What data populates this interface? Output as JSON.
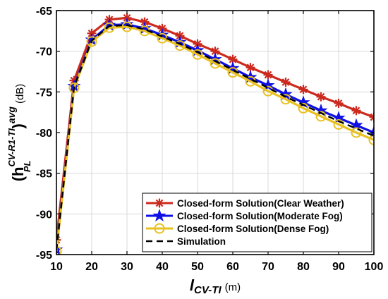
{
  "chart_data": {
    "type": "line",
    "x": [
      10,
      15,
      20,
      25,
      30,
      35,
      40,
      45,
      50,
      55,
      60,
      65,
      70,
      75,
      80,
      85,
      90,
      95,
      100
    ],
    "xlim": [
      10,
      100
    ],
    "ylim": [
      -95,
      -65
    ],
    "xticks": [
      "10",
      "20",
      "30",
      "40",
      "50",
      "60",
      "70",
      "80",
      "90",
      "100"
    ],
    "yticks": [
      "-65",
      "-70",
      "-75",
      "-80",
      "-85",
      "-90",
      "-95"
    ],
    "xlabel": {
      "main": "l",
      "sub": "CV-TI",
      "unit": "(m)"
    },
    "ylabel": {
      "open": "(h",
      "sup": "CV-R1-TI",
      "sub": "PL",
      "close": ")",
      "sup2": "avg",
      "unit": "(dB)"
    },
    "grid": true,
    "legend_position": "bottom-right",
    "series": [
      {
        "name": "Closed-form Solution(Clear Weather)",
        "color": "#cc2a1e",
        "marker": "asterisk",
        "values": [
          -93.2,
          -73.6,
          -67.8,
          -66.1,
          -65.9,
          -66.4,
          -67.2,
          -68.1,
          -69.1,
          -70.0,
          -71.0,
          -72.0,
          -72.9,
          -73.8,
          -74.7,
          -75.6,
          -76.4,
          -77.3,
          -78.1
        ]
      },
      {
        "name": "Closed-form Solution(Moderate Fog)",
        "color": "#1010e6",
        "marker": "star",
        "values": [
          -94.4,
          -74.3,
          -68.6,
          -66.8,
          -66.7,
          -67.2,
          -68.0,
          -68.9,
          -69.9,
          -71.0,
          -72.1,
          -73.2,
          -74.2,
          -75.3,
          -76.3,
          -77.3,
          -78.2,
          -79.1,
          -80.0
        ]
      },
      {
        "name": "Closed-form Solution(Dense Fog)",
        "color": "#e8c020",
        "marker": "circle",
        "values": [
          -94.6,
          -74.5,
          -68.8,
          -67.1,
          -67.0,
          -67.5,
          -68.4,
          -69.3,
          -70.4,
          -71.5,
          -72.6,
          -73.7,
          -74.9,
          -75.9,
          -77.0,
          -78.0,
          -79.0,
          -80.0,
          -80.9
        ]
      },
      {
        "name": "Simulation",
        "color": "#000000",
        "marker": "none",
        "dashed": true,
        "values": [
          -94.5,
          -74.4,
          -68.7,
          -66.9,
          -66.8,
          -67.3,
          -68.2,
          -69.1,
          -70.1,
          -71.2,
          -72.3,
          -73.4,
          -74.5,
          -75.6,
          -76.6,
          -77.6,
          -78.6,
          -79.5,
          -80.4
        ]
      }
    ]
  }
}
